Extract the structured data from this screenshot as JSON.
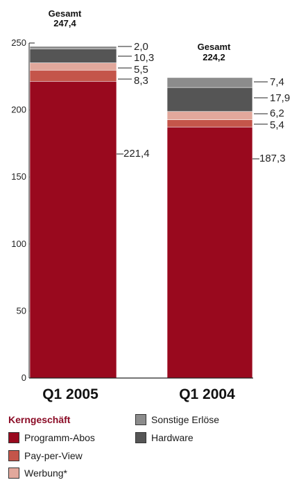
{
  "chart_data": {
    "type": "bar",
    "stacked": true,
    "categories": [
      "Q1 2005",
      "Q1 2004"
    ],
    "totals_label": "Gesamt",
    "totals": [
      "247,4",
      "224,2"
    ],
    "ylim": [
      0,
      250
    ],
    "yticks": [
      0,
      50,
      100,
      150,
      200,
      250
    ],
    "series": [
      {
        "name": "Programm-Abos",
        "color": "#99091e",
        "values": [
          221.4,
          187.3
        ],
        "labels": [
          "221,4",
          "187,3"
        ]
      },
      {
        "name": "Pay-per-View",
        "color": "#c4554a",
        "values": [
          8.3,
          5.4
        ],
        "labels": [
          "8,3",
          "5,4"
        ]
      },
      {
        "name": "Werbung*",
        "color": "#e2a89c",
        "values": [
          5.5,
          6.2
        ],
        "labels": [
          "5,5",
          "6,2"
        ]
      },
      {
        "name": "Hardware",
        "color": "#555555",
        "values": [
          10.3,
          17.9
        ],
        "labels": [
          "10,3",
          "17,9"
        ]
      },
      {
        "name": "Sonstige Erlöse",
        "color": "#8c8c8c",
        "values": [
          2.0,
          7.4
        ],
        "labels": [
          "2,0",
          "7,4"
        ]
      }
    ]
  },
  "legend": {
    "group_title": "Kerngeschäft",
    "items_left": [
      {
        "label": "Programm-Abos",
        "color": "#99091e"
      },
      {
        "label": "Pay-per-View",
        "color": "#c4554a"
      },
      {
        "label": "Werbung*",
        "color": "#e2a89c"
      }
    ],
    "items_right": [
      {
        "label": "Sonstige Erlöse",
        "color": "#8c8c8c"
      },
      {
        "label": "Hardware",
        "color": "#555555"
      }
    ]
  }
}
